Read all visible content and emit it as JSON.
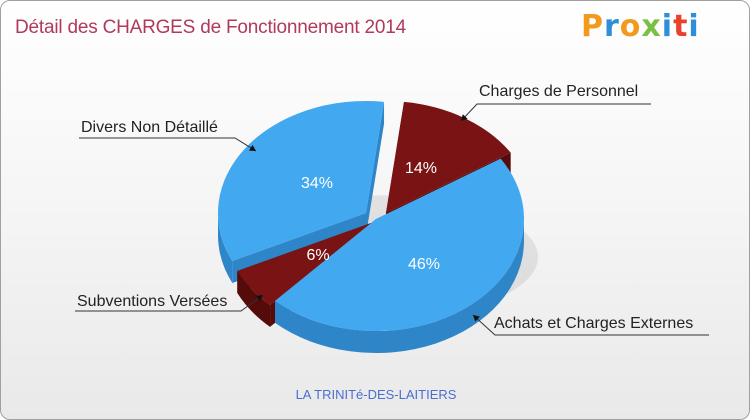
{
  "header": {
    "title": "Détail des CHARGES de Fonctionnement 2014",
    "logo_text": "Proxiti",
    "logo_colors": [
      "#f39a1e",
      "#2e8fd8",
      "#f39a1e",
      "#7ac143",
      "#2e8fd8",
      "#e8412c",
      "#2e8fd8"
    ]
  },
  "footer": {
    "commune": "LA TRINITé-DES-LAITIERS"
  },
  "colors": {
    "blue": "#42a9f1",
    "blue_dark": "#2e85c7",
    "maroon": "#7a1313",
    "maroon_dark": "#560b0b",
    "label_white": "#ffffff"
  },
  "chart_data": {
    "type": "pie",
    "title": "Détail des CHARGES de Fonctionnement 2014",
    "slices": [
      {
        "label": "Charges de Personnel",
        "percent_label": "14%",
        "value": 14,
        "color": "#7a1313"
      },
      {
        "label": "Achats et Charges Externes",
        "percent_label": "46%",
        "value": 46,
        "color": "#42a9f1"
      },
      {
        "label": "Subventions Versées",
        "percent_label": "6%",
        "value": 6,
        "color": "#7a1313"
      },
      {
        "label": "Divers Non Détaillé",
        "percent_label": "34%",
        "value": 34,
        "color": "#42a9f1"
      }
    ]
  }
}
